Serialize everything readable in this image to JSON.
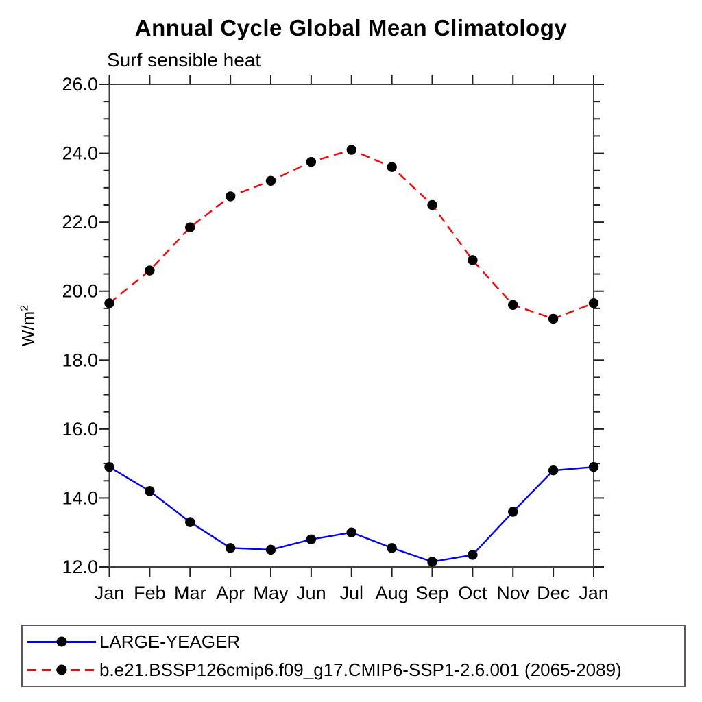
{
  "header": {
    "title": "Annual Cycle Global Mean Climatology",
    "subtitle": "Surf sensible heat"
  },
  "y_axis": {
    "label_base": "W/m",
    "label_exponent": "2"
  },
  "chart_data": {
    "type": "line",
    "title": "Annual Cycle Global Mean Climatology",
    "subtitle": "Surf sensible heat",
    "ylabel": "W/m^2",
    "xlabel": "",
    "categories": [
      "Jan",
      "Feb",
      "Mar",
      "Apr",
      "May",
      "Jun",
      "Jul",
      "Aug",
      "Sep",
      "Oct",
      "Nov",
      "Dec",
      "Jan"
    ],
    "series": [
      {
        "name": "LARGE-YEAGER",
        "line_style": "solid",
        "line_color": "#0000ff",
        "marker": "circle",
        "marker_color": "#000000",
        "values": [
          14.9,
          14.2,
          13.3,
          12.55,
          12.5,
          12.8,
          13.0,
          12.55,
          12.15,
          12.35,
          13.6,
          14.8,
          14.9
        ]
      },
      {
        "name": "b.e21.BSSP126cmip6.f09_g17.CMIP6-SSP1-2.6.001 (2065-2089)",
        "line_style": "dashed",
        "line_color": "#ff0000",
        "marker": "circle",
        "marker_color": "#000000",
        "values": [
          19.65,
          20.6,
          21.85,
          22.75,
          23.2,
          23.75,
          24.1,
          23.6,
          22.5,
          20.9,
          19.6,
          19.2,
          19.65
        ]
      }
    ],
    "ylim": [
      12.0,
      26.0
    ],
    "ytick_major_step": 2.0,
    "ytick_minor_step": 0.5,
    "ytick_labels": [
      "12.0",
      "14.0",
      "16.0",
      "18.0",
      "20.0",
      "22.0",
      "24.0",
      "26.0"
    ],
    "grid": false,
    "axis_color": "#404040",
    "tick_color": "#202020",
    "legend_position": "bottom-left-box"
  }
}
